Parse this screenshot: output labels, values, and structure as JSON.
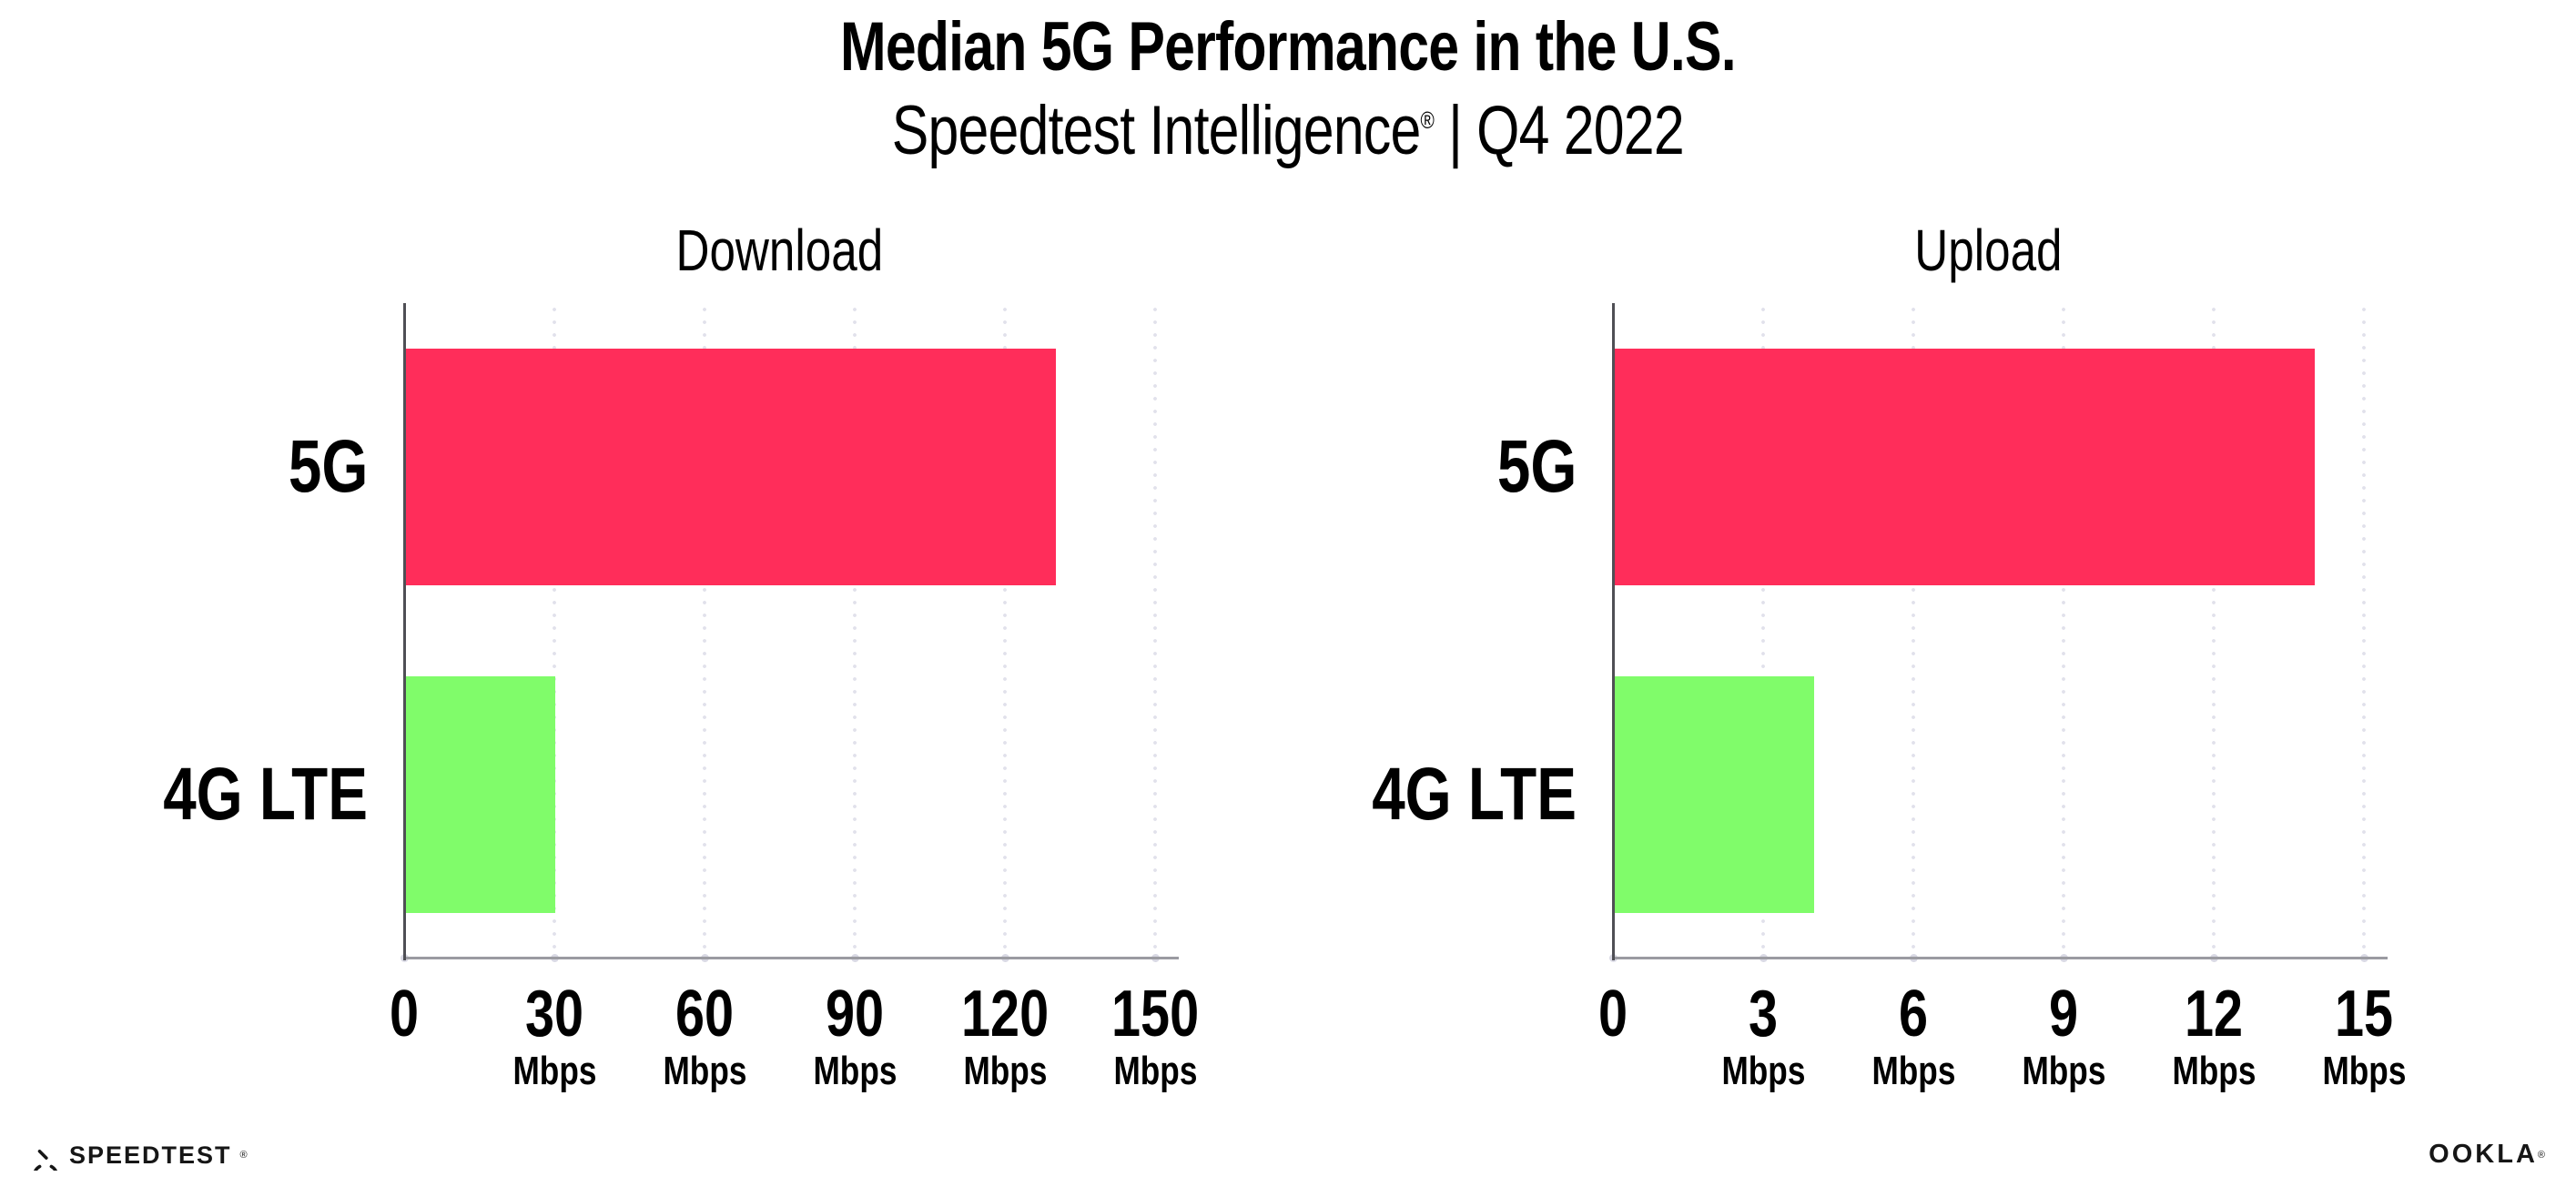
{
  "header": {
    "title": "Median 5G Performance in the U.S.",
    "subtitle_brand": "Speedtest Intelligence",
    "subtitle_reg": "®",
    "subtitle_rest": " | Q4 2022"
  },
  "colors": {
    "bar_5g": "#ff2d5a",
    "bar_4g_lte": "#80fc6a",
    "y_axis": "#4f4f55",
    "x_axis": "#9b9ba1",
    "gridline_dots": "#e1e1eb",
    "text": "#000000"
  },
  "chart_data": [
    {
      "type": "bar",
      "orientation": "horizontal",
      "title": "Download",
      "categories": [
        "5G",
        "4G LTE"
      ],
      "values": [
        130,
        30
      ],
      "unit": "Mbps",
      "xlim": [
        0,
        150
      ],
      "xticks": [
        0,
        30,
        60,
        90,
        120,
        150
      ],
      "grid": "vertical-dotted",
      "legend": "none",
      "bar_colors": [
        "#ff2d5a",
        "#80fc6a"
      ]
    },
    {
      "type": "bar",
      "orientation": "horizontal",
      "title": "Upload",
      "categories": [
        "5G",
        "4G LTE"
      ],
      "values": [
        14,
        4
      ],
      "unit": "Mbps",
      "xlim": [
        0,
        15
      ],
      "xticks": [
        0,
        3,
        6,
        9,
        12,
        15
      ],
      "grid": "vertical-dotted",
      "legend": "none",
      "bar_colors": [
        "#ff2d5a",
        "#80fc6a"
      ]
    }
  ],
  "footer": {
    "speedtest_label": "SPEEDTEST",
    "speedtest_mark": "®",
    "ookla_label": "OOKLA",
    "ookla_mark": "®"
  }
}
